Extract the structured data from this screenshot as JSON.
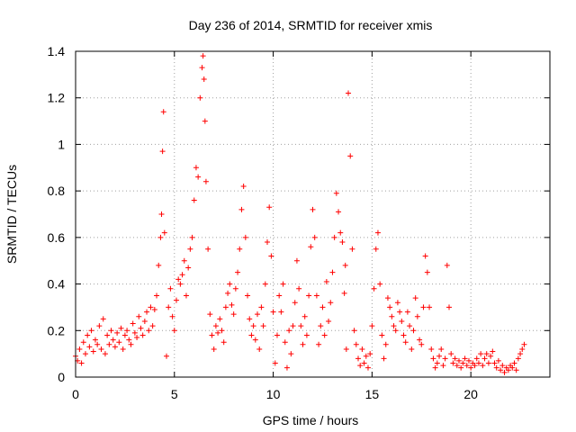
{
  "chart_data": {
    "type": "scatter",
    "title": "Day 236 of 2014, SRMTID for receiver xmis",
    "xlabel": "GPS time / hours",
    "ylabel": "SRMTID / TECUs",
    "xlim": [
      0,
      24
    ],
    "ylim": [
      0,
      1.4
    ],
    "xticks": [
      0,
      5,
      10,
      15,
      20
    ],
    "xtick_labels": [
      "0",
      "5",
      "10",
      "15",
      "20"
    ],
    "yticks": [
      0,
      0.2,
      0.4,
      0.6,
      0.8,
      1.0,
      1.2,
      1.4
    ],
    "ytick_labels": [
      "0",
      "0.2",
      "0.4",
      "0.6",
      "0.8",
      "1",
      "1.2",
      "1.4"
    ],
    "grid": true,
    "marker": "plus",
    "color": "#ff0000",
    "series": [
      {
        "name": "SRMTID",
        "x": [
          0.0,
          0.1,
          0.2,
          0.3,
          0.4,
          0.5,
          0.6,
          0.7,
          0.8,
          0.9,
          1.0,
          1.1,
          1.2,
          1.3,
          1.4,
          1.5,
          1.6,
          1.7,
          1.8,
          1.9,
          2.0,
          2.1,
          2.2,
          2.3,
          2.4,
          2.5,
          2.6,
          2.7,
          2.8,
          2.9,
          3.0,
          3.1,
          3.2,
          3.3,
          3.4,
          3.5,
          3.6,
          3.7,
          3.8,
          3.9,
          4.0,
          4.1,
          4.2,
          4.3,
          4.35,
          4.4,
          4.45,
          4.5,
          4.6,
          4.7,
          4.8,
          4.9,
          5.0,
          5.1,
          5.2,
          5.3,
          5.4,
          5.5,
          5.6,
          5.7,
          5.8,
          5.9,
          6.0,
          6.1,
          6.2,
          6.3,
          6.4,
          6.45,
          6.5,
          6.55,
          6.6,
          6.7,
          6.8,
          6.9,
          7.0,
          7.1,
          7.2,
          7.3,
          7.4,
          7.5,
          7.6,
          7.7,
          7.8,
          7.9,
          8.0,
          8.1,
          8.2,
          8.3,
          8.4,
          8.5,
          8.6,
          8.7,
          8.8,
          8.9,
          9.0,
          9.1,
          9.2,
          9.3,
          9.4,
          9.5,
          9.6,
          9.7,
          9.8,
          9.9,
          10.0,
          10.1,
          10.2,
          10.3,
          10.4,
          10.5,
          10.6,
          10.7,
          10.8,
          10.9,
          11.0,
          11.1,
          11.2,
          11.3,
          11.4,
          11.5,
          11.6,
          11.7,
          11.8,
          11.9,
          12.0,
          12.1,
          12.2,
          12.3,
          12.4,
          12.5,
          12.6,
          12.7,
          12.8,
          12.9,
          13.0,
          13.1,
          13.2,
          13.3,
          13.4,
          13.5,
          13.6,
          13.65,
          13.7,
          13.8,
          13.9,
          14.0,
          14.1,
          14.2,
          14.3,
          14.4,
          14.5,
          14.6,
          14.7,
          14.8,
          14.9,
          15.0,
          15.1,
          15.2,
          15.3,
          15.4,
          15.5,
          15.6,
          15.7,
          15.8,
          15.9,
          16.0,
          16.1,
          16.2,
          16.3,
          16.4,
          16.5,
          16.6,
          16.7,
          16.8,
          16.9,
          17.0,
          17.1,
          17.2,
          17.3,
          17.4,
          17.5,
          17.6,
          17.7,
          17.8,
          17.9,
          18.0,
          18.1,
          18.2,
          18.3,
          18.4,
          18.5,
          18.6,
          18.7,
          18.8,
          18.9,
          19.0,
          19.1,
          19.2,
          19.3,
          19.4,
          19.5,
          19.6,
          19.7,
          19.8,
          19.9,
          20.0,
          20.1,
          20.2,
          20.3,
          20.4,
          20.5,
          20.6,
          20.7,
          20.8,
          20.9,
          21.0,
          21.1,
          21.2,
          21.3,
          21.4,
          21.5,
          21.6,
          21.7,
          21.8,
          21.9,
          22.0,
          22.1,
          22.2,
          22.3,
          22.4,
          22.5,
          22.6,
          22.7
        ],
        "y": [
          0.09,
          0.07,
          0.12,
          0.06,
          0.15,
          0.1,
          0.18,
          0.13,
          0.2,
          0.11,
          0.16,
          0.14,
          0.22,
          0.12,
          0.25,
          0.1,
          0.18,
          0.14,
          0.2,
          0.16,
          0.13,
          0.19,
          0.15,
          0.21,
          0.12,
          0.18,
          0.2,
          0.16,
          0.14,
          0.23,
          0.19,
          0.17,
          0.26,
          0.21,
          0.18,
          0.24,
          0.28,
          0.2,
          0.3,
          0.22,
          0.29,
          0.35,
          0.48,
          0.6,
          0.7,
          0.97,
          1.14,
          0.62,
          0.09,
          0.3,
          0.38,
          0.26,
          0.2,
          0.33,
          0.42,
          0.4,
          0.44,
          0.5,
          0.35,
          0.47,
          0.55,
          0.6,
          0.76,
          0.9,
          0.86,
          1.2,
          1.33,
          1.38,
          1.28,
          1.1,
          0.84,
          0.55,
          0.27,
          0.18,
          0.12,
          0.22,
          0.19,
          0.25,
          0.2,
          0.15,
          0.3,
          0.36,
          0.4,
          0.31,
          0.27,
          0.38,
          0.45,
          0.55,
          0.72,
          0.82,
          0.6,
          0.35,
          0.25,
          0.18,
          0.22,
          0.16,
          0.27,
          0.12,
          0.3,
          0.22,
          0.4,
          0.58,
          0.73,
          0.52,
          0.28,
          0.06,
          0.18,
          0.35,
          0.28,
          0.4,
          0.15,
          0.04,
          0.2,
          0.1,
          0.22,
          0.32,
          0.5,
          0.38,
          0.22,
          0.14,
          0.26,
          0.18,
          0.35,
          0.56,
          0.72,
          0.6,
          0.35,
          0.14,
          0.22,
          0.3,
          0.18,
          0.41,
          0.24,
          0.32,
          0.45,
          0.6,
          0.79,
          0.71,
          0.62,
          0.58,
          0.36,
          0.48,
          0.12,
          1.22,
          0.95,
          0.55,
          0.2,
          0.14,
          0.08,
          0.05,
          0.12,
          0.06,
          0.09,
          0.04,
          0.1,
          0.22,
          0.38,
          0.55,
          0.62,
          0.4,
          0.18,
          0.08,
          0.14,
          0.34,
          0.3,
          0.26,
          0.22,
          0.2,
          0.32,
          0.28,
          0.24,
          0.18,
          0.15,
          0.28,
          0.22,
          0.12,
          0.2,
          0.34,
          0.26,
          0.16,
          0.14,
          0.3,
          0.52,
          0.45,
          0.3,
          0.12,
          0.08,
          0.04,
          0.06,
          0.09,
          0.12,
          0.05,
          0.08,
          0.48,
          0.3,
          0.1,
          0.06,
          0.08,
          0.05,
          0.07,
          0.04,
          0.06,
          0.08,
          0.05,
          0.07,
          0.04,
          0.06,
          0.05,
          0.08,
          0.06,
          0.1,
          0.05,
          0.08,
          0.1,
          0.06,
          0.09,
          0.11,
          0.06,
          0.04,
          0.07,
          0.03,
          0.05,
          0.02,
          0.04,
          0.03,
          0.05,
          0.04,
          0.06,
          0.03,
          0.08,
          0.1,
          0.12,
          0.14
        ]
      }
    ]
  }
}
